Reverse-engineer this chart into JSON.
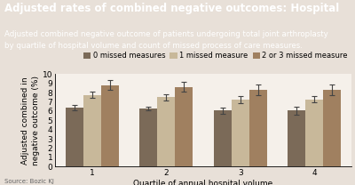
{
  "title": "Adjusted rates of combined negative outcomes: Hospital",
  "subtitle": "Adjusted combined negative outcome of patients undergoing total joint arthroplasty\nby quartile of hospital volume and count of missed process of care measures.",
  "xlabel": "Quartile of annual hospital volume",
  "ylabel": "Adjusted combined in\nnegative outcome (%)",
  "source": "Source: Bozic KJ",
  "quartiles": [
    1,
    2,
    3,
    4
  ],
  "legend_labels": [
    "0 missed measures",
    "1 missed measure",
    "2 or 3 missed measure"
  ],
  "bar_colors": [
    "#7b6a58",
    "#c8b89a",
    "#a08060"
  ],
  "values": [
    [
      6.4,
      7.75,
      8.8
    ],
    [
      6.25,
      7.5,
      8.6
    ],
    [
      6.05,
      7.2,
      8.25
    ],
    [
      6.05,
      7.25,
      8.3
    ]
  ],
  "errors": [
    [
      0.28,
      0.32,
      0.55
    ],
    [
      0.22,
      0.32,
      0.52
    ],
    [
      0.32,
      0.38,
      0.58
    ],
    [
      0.45,
      0.32,
      0.58
    ]
  ],
  "ylim": [
    0,
    10
  ],
  "yticks": [
    0,
    1,
    2,
    3,
    4,
    5,
    6,
    7,
    8,
    9,
    10
  ],
  "header_bg": "#9a8878",
  "figure_bg": "#e8e0d8",
  "plot_bg": "#f5f0ea",
  "bar_width": 0.24,
  "title_fontsize": 8.5,
  "subtitle_fontsize": 6.2,
  "axis_fontsize": 6.5,
  "tick_fontsize": 6.5,
  "legend_fontsize": 6.0
}
